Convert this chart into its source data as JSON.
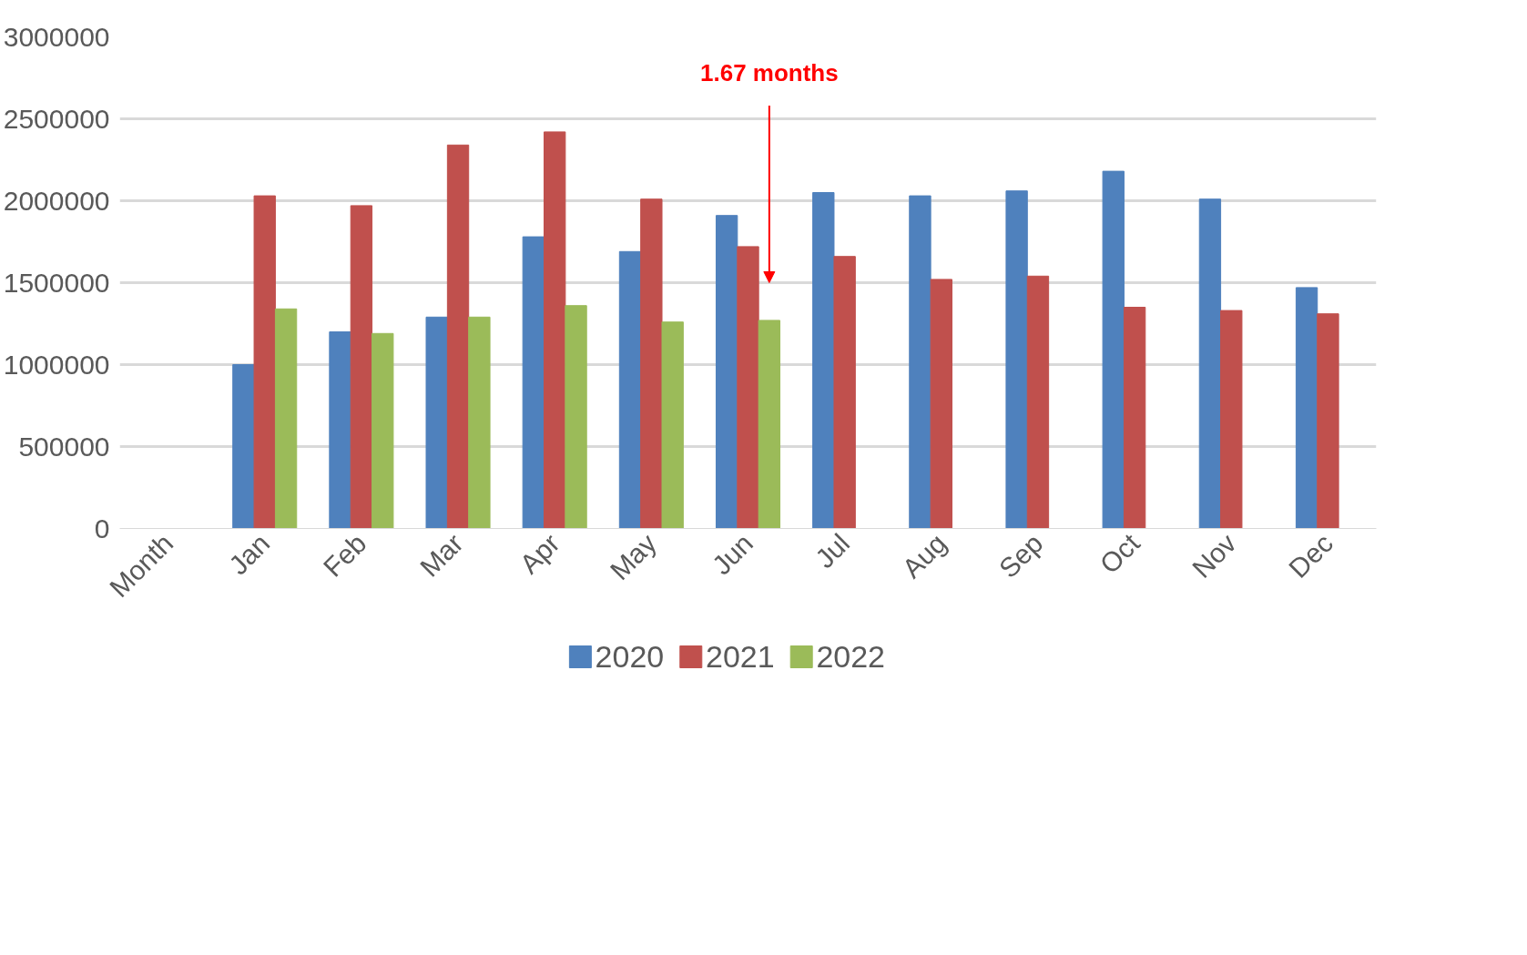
{
  "chart_data": {
    "type": "bar",
    "categories": [
      "Month",
      "Jan",
      "Feb",
      "Mar",
      "Apr",
      "May",
      "Jun",
      "Jul",
      "Aug",
      "Sep",
      "Oct",
      "Nov",
      "Dec"
    ],
    "series": [
      {
        "name": "2020",
        "color": "#4f81bd",
        "values": [
          null,
          1000000,
          1200000,
          1290000,
          1780000,
          1690000,
          1910000,
          2050000,
          2030000,
          2060000,
          2180000,
          2010000,
          1470000
        ]
      },
      {
        "name": "2021",
        "color": "#c0504d",
        "values": [
          null,
          2030000,
          1970000,
          2340000,
          2420000,
          2010000,
          1720000,
          1660000,
          1520000,
          1540000,
          1350000,
          1330000,
          1310000
        ]
      },
      {
        "name": "2022",
        "color": "#9bbb59",
        "values": [
          null,
          1340000,
          1190000,
          1290000,
          1360000,
          1260000,
          1270000,
          null,
          null,
          null,
          null,
          null,
          null
        ]
      }
    ],
    "ylim": [
      0,
      3000000
    ],
    "yticks": [
      0,
      500000,
      1000000,
      1500000,
      2000000,
      2500000,
      3000000
    ],
    "grid": "y",
    "legend": "bottom",
    "annotations": [
      "1.67 months"
    ]
  }
}
